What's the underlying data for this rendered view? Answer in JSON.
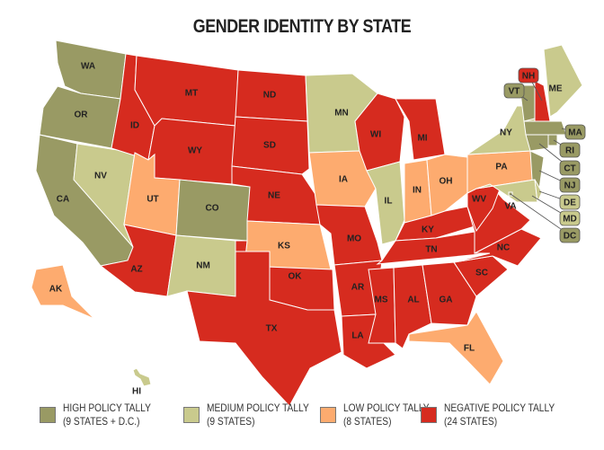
{
  "title": "GENDER IDENTITY BY STATE",
  "colors": {
    "high": "#999a64",
    "medium": "#c9ca8d",
    "low": "#fdab6f",
    "negative": "#d62b1f"
  },
  "legend": [
    {
      "key": "high",
      "label": "HIGH POLICY TALLY",
      "sub": "(9 STATES + D.C.)"
    },
    {
      "key": "medium",
      "label": "MEDIUM POLICY TALLY",
      "sub": "(9 STATES)"
    },
    {
      "key": "low",
      "label": "LOW POLICY TALLY",
      "sub": "(8 STATES)"
    },
    {
      "key": "negative",
      "label": "NEGATIVE POLICY TALLY",
      "sub": "(24 STATES)"
    }
  ],
  "states": {
    "WA": "high",
    "OR": "high",
    "CA": "high",
    "CO": "high",
    "VT": "high",
    "MA": "high",
    "RI": "high",
    "CT": "high",
    "NJ": "high",
    "DC": "high",
    "NV": "medium",
    "NM": "medium",
    "MN": "medium",
    "IL": "medium",
    "NY": "medium",
    "ME": "medium",
    "DE": "medium",
    "MD": "medium",
    "HI": "medium",
    "UT": "low",
    "KS": "low",
    "IA": "low",
    "IN": "low",
    "OH": "low",
    "PA": "low",
    "AK": "low",
    "FL": "low",
    "ID": "negative",
    "MT": "negative",
    "WY": "negative",
    "ND": "negative",
    "SD": "negative",
    "NE": "negative",
    "AZ": "negative",
    "OK": "negative",
    "TX": "negative",
    "MO": "negative",
    "AR": "negative",
    "LA": "negative",
    "WI": "negative",
    "MI": "negative",
    "KY": "negative",
    "TN": "negative",
    "MS": "negative",
    "AL": "negative",
    "GA": "negative",
    "SC": "negative",
    "NC": "negative",
    "VA": "negative",
    "WV": "negative",
    "NH": "negative"
  }
}
